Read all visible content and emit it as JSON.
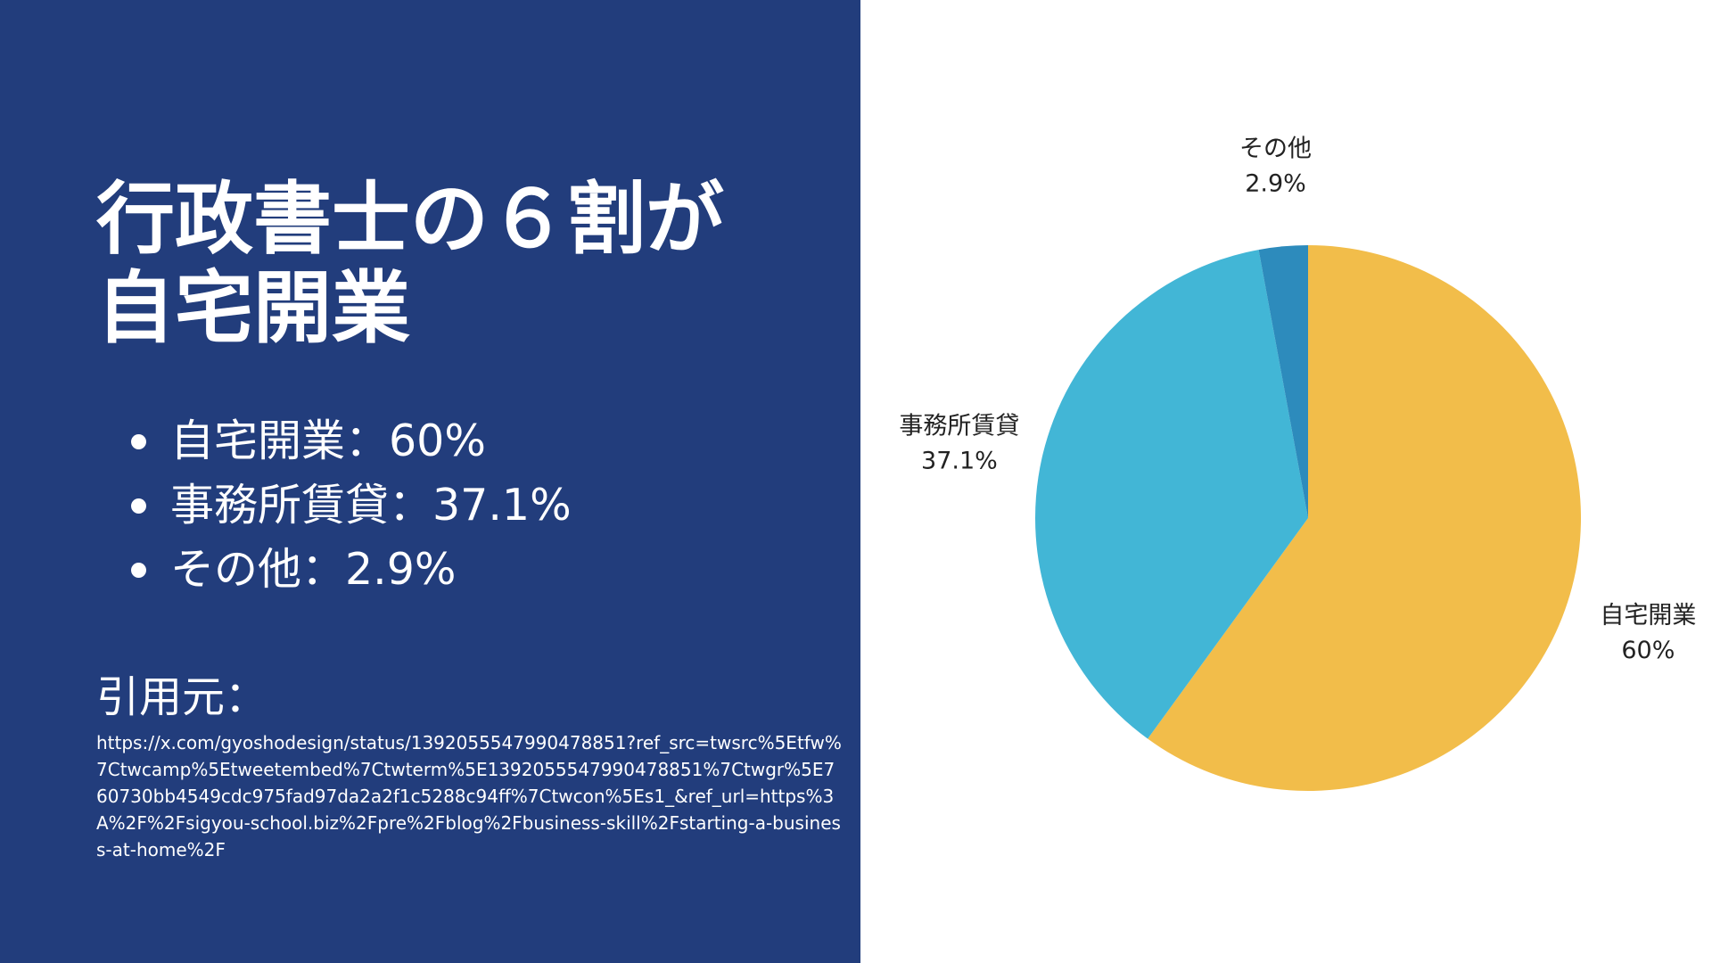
{
  "slide": {
    "title": "行政書士の６割が\n自宅開業",
    "bullets": [
      "自宅開業：60%",
      "事務所賃貸：37.1%",
      "その他：2.9%"
    ],
    "source_label": "引用元：",
    "source_url": "https://x.com/gyoshodesign/status/1392055547990478851?ref_src=twsrc%5Etfw%7Ctwcamp%5Etweetembed%7Ctwterm%5E1392055547990478851%7Ctwgr%5E760730bb4549cdc975fad97da2a2f1c5288c94ff%7Ctwcon%5Es1_&ref_url=https%3A%2F%2Fsigyou-school.biz%2Fpre%2Fblog%2Fbusiness-skill%2Fstarting-a-business-at-home%2F"
  },
  "colors": {
    "panel_background": "#223d7c",
    "text_light": "#ffffff",
    "label_dark": "#222222"
  },
  "chart_data": {
    "type": "pie",
    "start": "top",
    "direction": "clockwise",
    "slices": [
      {
        "label": "自宅開業",
        "value": 60,
        "display": "60%",
        "color": "#f2bd4a"
      },
      {
        "label": "事務所賃貸",
        "value": 37.1,
        "display": "37.1%",
        "color": "#42b6d6"
      },
      {
        "label": "その他",
        "value": 2.9,
        "display": "2.9%",
        "color": "#2d8bbc"
      }
    ]
  }
}
